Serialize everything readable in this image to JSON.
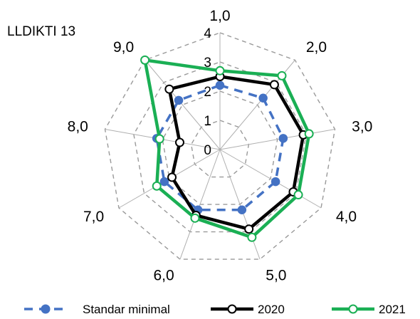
{
  "chart_data": {
    "type": "radar",
    "title": "LLDIKTI 13",
    "categories": [
      "1,0",
      "2,0",
      "3,0",
      "4,0",
      "5,0",
      "6,0",
      "7,0",
      "8,0",
      "9,0"
    ],
    "rlim": [
      0,
      4
    ],
    "rticks": [
      "0",
      "1",
      "2",
      "3",
      "4"
    ],
    "series": [
      {
        "name": "Standar minimal",
        "color": "#4472c4",
        "style": "dashed",
        "marker": "filled-circle",
        "values": [
          2.2,
          2.3,
          2.2,
          2.2,
          2.2,
          2.2,
          2.2,
          2.2,
          2.2
        ]
      },
      {
        "name": "2020",
        "color": "#000000",
        "style": "solid",
        "marker": "open-circle",
        "values": [
          2.5,
          2.9,
          2.9,
          2.9,
          2.9,
          2.4,
          1.9,
          1.4,
          2.7
        ]
      },
      {
        "name": "2021",
        "color": "#1aaf54",
        "style": "solid",
        "marker": "open-circle",
        "values": [
          2.7,
          3.3,
          3.1,
          3.1,
          3.2,
          2.5,
          2.5,
          2.1,
          4.0
        ]
      }
    ],
    "legend_position": "bottom",
    "grid": true
  }
}
